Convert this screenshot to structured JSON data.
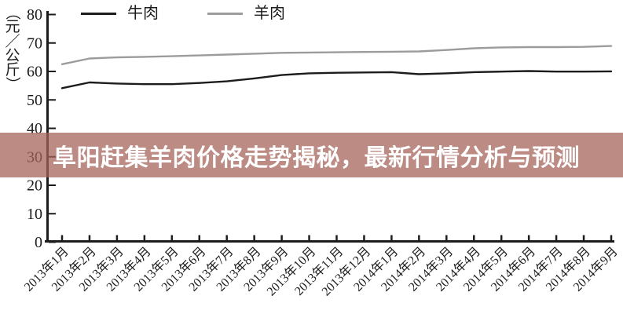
{
  "banner": {
    "text": "阜阳赶集羊肉价格走势揭秘，最新行情分析与预测",
    "bg": "#b88b84",
    "text_color": "#ffffff"
  },
  "chart_data": {
    "type": "line",
    "title": "",
    "xlabel": "",
    "ylabel": "（元／公斤）",
    "ylim": [
      0,
      80
    ],
    "yticks": [
      0,
      10,
      20,
      30,
      40,
      50,
      60,
      70,
      80
    ],
    "grid": false,
    "legend_position": "top",
    "categories": [
      "2013年1月",
      "2013年2月",
      "2013年3月",
      "2013年4月",
      "2013年5月",
      "2013年6月",
      "2013年7月",
      "2013年8月",
      "2013年9月",
      "2013年10月",
      "2013年11月",
      "2013年12月",
      "2014年1月",
      "2014年2月",
      "2014年3月",
      "2014年4月",
      "2014年5月",
      "2014年6月",
      "2014年7月",
      "2014年8月",
      "2014年9月"
    ],
    "series": [
      {
        "name": "牛肉",
        "color": "#1c1c1c",
        "values": [
          54.0,
          56.0,
          55.6,
          55.4,
          55.4,
          55.8,
          56.4,
          57.4,
          58.6,
          59.2,
          59.4,
          59.5,
          59.6,
          58.9,
          59.2,
          59.6,
          59.8,
          60.0,
          59.8,
          59.8,
          59.9
        ]
      },
      {
        "name": "羊肉",
        "color": "#9c9c9c",
        "values": [
          62.4,
          64.4,
          64.8,
          65.0,
          65.2,
          65.5,
          65.8,
          66.1,
          66.4,
          66.5,
          66.6,
          66.7,
          66.8,
          66.9,
          67.4,
          68.0,
          68.3,
          68.4,
          68.4,
          68.5,
          68.8
        ]
      }
    ],
    "axis_color": "#1c1c1c"
  }
}
